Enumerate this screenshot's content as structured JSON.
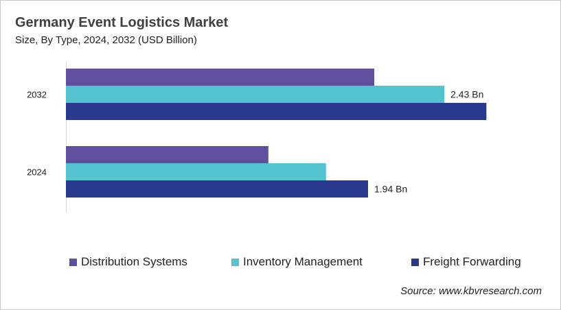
{
  "chart_data": {
    "type": "bar",
    "orientation": "horizontal",
    "title": "Germany Event Logistics Market",
    "subtitle": "Size, By Type, 2024, 2032 (USD Billion)",
    "categories": [
      "2032",
      "2024"
    ],
    "series": [
      {
        "name": "Distribution Systems",
        "color": "#5f4f9e",
        "values": [
          1.98,
          1.3
        ]
      },
      {
        "name": "Inventory Management",
        "color": "#52c3cf",
        "values": [
          2.43,
          1.67
        ]
      },
      {
        "name": "Freight Forwarding",
        "color": "#293a8e",
        "values": [
          2.7,
          1.94
        ]
      }
    ],
    "data_labels": [
      {
        "category": "2032",
        "series": "Inventory Management",
        "text": "2.43 Bn"
      },
      {
        "category": "2024",
        "series": "Freight Forwarding",
        "text": "1.94 Bn"
      }
    ],
    "xlim": [
      0,
      2.8
    ],
    "grid": false,
    "legend_position": "bottom",
    "source": "Source: www.kbvresearch.com"
  }
}
